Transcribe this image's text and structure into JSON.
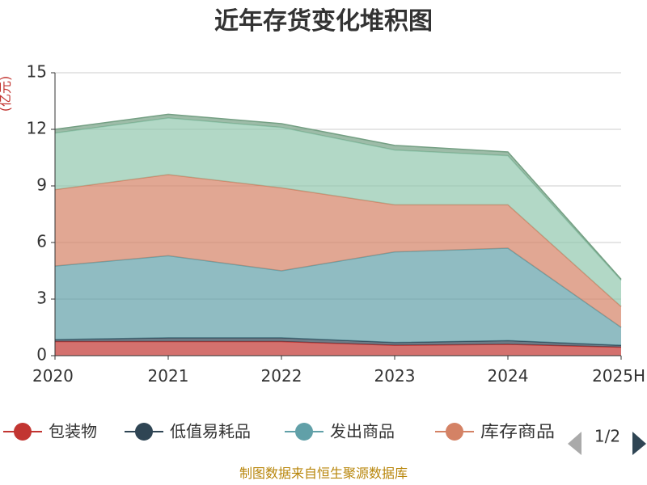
{
  "title": "近年存货变化堆积图",
  "source_note": "制图数据来自恒生聚源数据库",
  "legend": {
    "page": "1/2",
    "items": [
      {
        "label": "包装物",
        "color": "#c23531"
      },
      {
        "label": "低值易耗品",
        "color": "#2f4554"
      },
      {
        "label": "发出商品",
        "color": "#61a0a8"
      },
      {
        "label": "库存商品",
        "color": "#d48265"
      }
    ]
  },
  "chart_data": {
    "type": "area",
    "stacked": true,
    "title": "近年存货变化堆积图",
    "ylabel": "(亿元)",
    "categories": [
      "2020",
      "2021",
      "2022",
      "2023",
      "2024",
      "2025H"
    ],
    "ylim": [
      0,
      15
    ],
    "yticks": [
      0,
      3,
      6,
      9,
      12,
      15
    ],
    "grid": true,
    "legend_position": "bottom",
    "series": [
      {
        "name": "包装物",
        "color": "#c23531",
        "values": [
          0.75,
          0.75,
          0.75,
          0.55,
          0.6,
          0.45
        ]
      },
      {
        "name": "低值易耗品",
        "color": "#2f4554",
        "values": [
          0.1,
          0.2,
          0.2,
          0.15,
          0.2,
          0.1
        ]
      },
      {
        "name": "发出商品",
        "color": "#61a0a8",
        "values": [
          3.9,
          4.35,
          3.55,
          4.8,
          4.9,
          0.95
        ]
      },
      {
        "name": "库存商品",
        "color": "#d48265",
        "values": [
          4.05,
          4.3,
          4.4,
          2.5,
          2.3,
          1.1
        ]
      },
      {
        "name": "",
        "color": "#91c7ae",
        "values": [
          3.0,
          3.0,
          3.2,
          2.9,
          2.6,
          1.4
        ]
      },
      {
        "name": "",
        "color": "#749f83",
        "values": [
          0.2,
          0.2,
          0.2,
          0.25,
          0.2,
          0.05
        ]
      }
    ]
  }
}
